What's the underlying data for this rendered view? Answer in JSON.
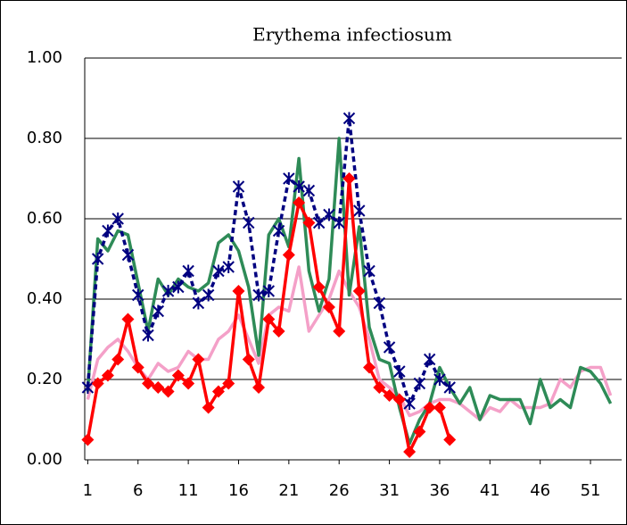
{
  "chart_data": {
    "type": "line",
    "title": "Erythema infectiosum",
    "x": [
      1,
      2,
      3,
      4,
      5,
      6,
      7,
      8,
      9,
      10,
      11,
      12,
      13,
      14,
      15,
      16,
      17,
      18,
      19,
      20,
      21,
      22,
      23,
      24,
      25,
      26,
      27,
      28,
      29,
      30,
      31,
      32,
      33,
      34,
      35,
      36,
      37,
      38,
      39,
      40,
      41,
      42,
      43,
      44,
      45,
      46,
      47,
      48,
      49,
      50,
      51,
      52,
      53
    ],
    "xlim": [
      0.7,
      54.1
    ],
    "xticks": [
      1,
      6,
      11,
      16,
      21,
      26,
      31,
      36,
      41,
      46,
      51
    ],
    "ylim": [
      0,
      1
    ],
    "yticks": [
      {
        "value": 0,
        "label": "0.00"
      },
      {
        "value": 0.2,
        "label": "0.20"
      },
      {
        "value": 0.4,
        "label": "0.40"
      },
      {
        "value": 0.6,
        "label": "0.60"
      },
      {
        "value": 0.8,
        "label": "0.80"
      },
      {
        "value": 1,
        "label": "1.00"
      }
    ],
    "grid": true,
    "series": [
      {
        "color": "#f4a0c8",
        "marker": "none",
        "dash": false,
        "values": [
          0.15,
          0.25,
          0.28,
          0.3,
          0.27,
          0.23,
          0.2,
          0.24,
          0.22,
          0.23,
          0.27,
          0.25,
          0.25,
          0.3,
          0.32,
          0.36,
          0.3,
          0.24,
          0.36,
          0.38,
          0.37,
          0.48,
          0.32,
          0.36,
          0.4,
          0.47,
          0.42,
          0.38,
          0.3,
          0.2,
          0.18,
          0.16,
          0.11,
          0.12,
          0.14,
          0.15,
          0.15,
          0.14,
          0.12,
          0.1,
          0.13,
          0.12,
          0.15,
          0.13,
          0.13,
          0.13,
          0.14,
          0.2,
          0.18,
          0.22,
          0.23,
          0.23,
          0.16
        ]
      },
      {
        "color": "#2e8b57",
        "marker": "none",
        "dash": false,
        "values": [
          0.17,
          0.55,
          0.52,
          0.57,
          0.56,
          0.44,
          0.32,
          0.45,
          0.41,
          0.45,
          0.43,
          0.42,
          0.44,
          0.54,
          0.56,
          0.52,
          0.43,
          0.26,
          0.56,
          0.6,
          0.53,
          0.75,
          0.47,
          0.37,
          0.45,
          0.8,
          0.41,
          0.58,
          0.33,
          0.25,
          0.24,
          0.13,
          0.04,
          0.1,
          0.14,
          0.23,
          0.18,
          0.14,
          0.18,
          0.1,
          0.16,
          0.15,
          0.15,
          0.15,
          0.09,
          0.2,
          0.13,
          0.15,
          0.13,
          0.23,
          0.22,
          0.19,
          0.14
        ]
      },
      {
        "color": "#000080",
        "marker": "asterisk",
        "dash": true,
        "values": [
          0.18,
          0.5,
          0.57,
          0.6,
          0.51,
          0.41,
          0.31,
          0.37,
          0.42,
          0.43,
          0.47,
          0.39,
          0.41,
          0.47,
          0.48,
          0.68,
          0.59,
          0.41,
          0.42,
          0.57,
          0.7,
          0.68,
          0.67,
          0.59,
          0.61,
          0.59,
          0.85,
          0.62,
          0.47,
          0.39,
          0.28,
          0.22,
          0.14,
          0.19,
          0.25,
          0.2,
          0.18,
          null,
          null,
          null,
          null,
          null,
          null,
          null,
          null,
          null,
          null,
          null,
          null,
          null,
          null,
          null,
          null
        ]
      },
      {
        "color": "#ff0000",
        "marker": "diamond",
        "dash": false,
        "values": [
          0.05,
          0.19,
          0.21,
          0.25,
          0.35,
          0.23,
          0.19,
          0.18,
          0.17,
          0.21,
          0.19,
          0.25,
          0.13,
          0.17,
          0.19,
          0.42,
          0.25,
          0.18,
          0.35,
          0.32,
          0.51,
          0.64,
          0.59,
          0.43,
          0.38,
          0.32,
          0.7,
          0.42,
          0.23,
          0.18,
          0.16,
          0.15,
          0.02,
          0.07,
          0.13,
          0.13,
          0.05,
          null,
          null,
          null,
          null,
          null,
          null,
          null,
          null,
          null,
          null,
          null,
          null,
          null,
          null,
          null,
          null
        ]
      }
    ]
  }
}
